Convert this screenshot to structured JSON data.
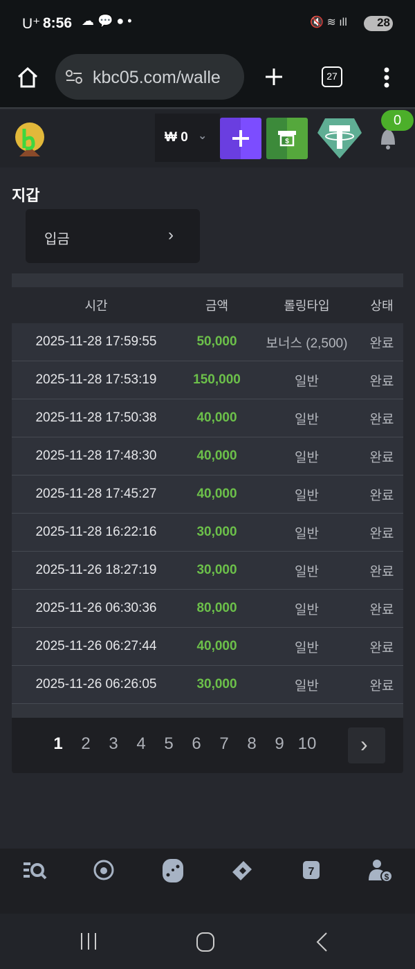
{
  "status_bar": {
    "carrier": "U⁺",
    "time": "8:56",
    "battery": "28"
  },
  "browser": {
    "url": "kbc05.com/walle",
    "tab_count": "27"
  },
  "header": {
    "balance": "₩ 0",
    "notifications": "0"
  },
  "page": {
    "title": "지갑",
    "deposit_label": "입금"
  },
  "table": {
    "headers": [
      "시간",
      "금액",
      "롤링타입",
      "상태"
    ],
    "rows": [
      [
        "2025-11-28 17:59:55",
        "50,000",
        "보너스 (2,500)",
        "완료"
      ],
      [
        "2025-11-28 17:53:19",
        "150,000",
        "일반",
        "완료"
      ],
      [
        "2025-11-28 17:50:38",
        "40,000",
        "일반",
        "완료"
      ],
      [
        "2025-11-28 17:48:30",
        "40,000",
        "일반",
        "완료"
      ],
      [
        "2025-11-28 17:45:27",
        "40,000",
        "일반",
        "완료"
      ],
      [
        "2025-11-28 16:22:16",
        "30,000",
        "일반",
        "완료"
      ],
      [
        "2025-11-26 18:27:19",
        "30,000",
        "일반",
        "완료"
      ],
      [
        "2025-11-26 06:30:36",
        "80,000",
        "일반",
        "완료"
      ],
      [
        "2025-11-26 06:27:44",
        "40,000",
        "일반",
        "완료"
      ],
      [
        "2025-11-26 06:26:05",
        "30,000",
        "일반",
        "완료"
      ]
    ]
  },
  "pagination": {
    "pages": [
      "1",
      "2",
      "3",
      "4",
      "5",
      "6",
      "7",
      "8",
      "9",
      "10"
    ],
    "current": "1"
  },
  "bottom_nav": [
    "search-list-icon",
    "soccer-icon",
    "dice-icon",
    "cards-icon",
    "slot-icon",
    "user-money-icon"
  ],
  "colors": {
    "amount": "#6cc04a",
    "deposit_btn": "#7c4dff",
    "cash_btn": "#4ca33a",
    "tether": "#5fae94",
    "badge": "#4caf2a"
  }
}
